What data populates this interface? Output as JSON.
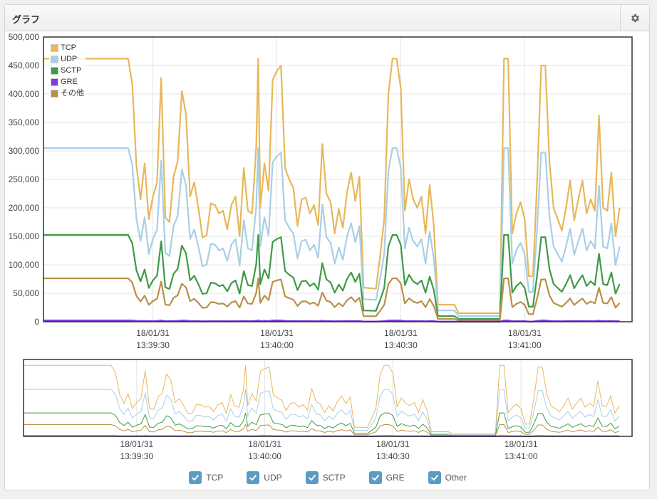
{
  "panel": {
    "title": "グラフ",
    "settings_icon": "gear-icon"
  },
  "colors": {
    "TCP": "#e8b75a",
    "UDP": "#a8cfe6",
    "SCTP": "#3f9a46",
    "GRE": "#7d3bdc",
    "Other": "#b8904a"
  },
  "legend": {
    "items": [
      "TCP",
      "UDP",
      "SCTP",
      "GRE",
      "その他"
    ]
  },
  "toggles": [
    {
      "label": "TCP",
      "checked": true
    },
    {
      "label": "UDP",
      "checked": true
    },
    {
      "label": "SCTP",
      "checked": true
    },
    {
      "label": "GRE",
      "checked": true
    },
    {
      "label": "Other",
      "checked": true
    }
  ],
  "chart_data": [
    {
      "type": "line",
      "title": "",
      "x_tick_labels": [
        {
          "date": "18/01/31",
          "time": "13:39:30",
          "t": 50
        },
        {
          "date": "18/01/31",
          "time": "13:40:00",
          "t": 80
        },
        {
          "date": "18/01/31",
          "time": "13:40:30",
          "t": 110
        },
        {
          "date": "18/01/31",
          "time": "13:41:00",
          "t": 140
        }
      ],
      "x_range": [
        23.5,
        166
      ],
      "y_ticks": [
        "0",
        "50,000",
        "100,000",
        "150,000",
        "200,000",
        "250,000",
        "300,000",
        "350,000",
        "400,000",
        "450,000",
        "500,000"
      ],
      "ylim": [
        0,
        500000
      ],
      "grid": true,
      "legend_position": "top-left",
      "series_ratios": {
        "UDP": 0.66,
        "SCTP": 0.33,
        "Other": 0.165,
        "GRE": 0.005
      },
      "tcp_knots": [
        [
          23.5,
          462000
        ],
        [
          44,
          462000
        ],
        [
          45,
          418000
        ],
        [
          46,
          275000
        ],
        [
          47,
          215000
        ],
        [
          48,
          278000
        ],
        [
          49,
          180000
        ],
        [
          50,
          220000
        ],
        [
          51,
          245000
        ],
        [
          52,
          428000
        ],
        [
          53,
          183000
        ],
        [
          54,
          175000
        ],
        [
          55,
          255000
        ],
        [
          56,
          282000
        ],
        [
          57,
          405000
        ],
        [
          58,
          365000
        ],
        [
          59,
          220000
        ],
        [
          60,
          245000
        ],
        [
          61,
          200000
        ],
        [
          62,
          148000
        ],
        [
          63,
          152000
        ],
        [
          64,
          208000
        ],
        [
          65,
          205000
        ],
        [
          66,
          190000
        ],
        [
          67,
          195000
        ],
        [
          68,
          162000
        ],
        [
          69,
          205000
        ],
        [
          70,
          220000
        ],
        [
          71,
          150000
        ],
        [
          72,
          270000
        ],
        [
          73,
          195000
        ],
        [
          74,
          190000
        ],
        [
          75,
          305000
        ],
        [
          75.5,
          462000
        ],
        [
          76,
          200000
        ],
        [
          77,
          278000
        ],
        [
          78,
          230000
        ],
        [
          79,
          425000
        ],
        [
          80,
          440000
        ],
        [
          81,
          450000
        ],
        [
          82,
          270000
        ],
        [
          83,
          250000
        ],
        [
          84,
          235000
        ],
        [
          85,
          168000
        ],
        [
          86,
          215000
        ],
        [
          87,
          218000
        ],
        [
          88,
          190000
        ],
        [
          89,
          205000
        ],
        [
          90,
          170000
        ],
        [
          91,
          312000
        ],
        [
          92,
          225000
        ],
        [
          93,
          210000
        ],
        [
          94,
          155000
        ],
        [
          95,
          198000
        ],
        [
          96,
          165000
        ],
        [
          97,
          228000
        ],
        [
          98,
          262000
        ],
        [
          99,
          212000
        ],
        [
          100,
          255000
        ],
        [
          101,
          60000
        ],
        [
          104,
          58000
        ],
        [
          105,
          115000
        ],
        [
          106,
          180000
        ],
        [
          107,
          400000
        ],
        [
          108,
          462000
        ],
        [
          109,
          462000
        ],
        [
          110,
          410000
        ],
        [
          111,
          195000
        ],
        [
          112,
          250000
        ],
        [
          113,
          215000
        ],
        [
          114,
          200000
        ],
        [
          115,
          220000
        ],
        [
          116,
          155000
        ],
        [
          117,
          240000
        ],
        [
          118,
          168000
        ],
        [
          119,
          30000
        ],
        [
          123,
          30000
        ],
        [
          124,
          15000
        ],
        [
          134,
          15000
        ],
        [
          135,
          462000
        ],
        [
          136,
          462000
        ],
        [
          137,
          155000
        ],
        [
          138,
          190000
        ],
        [
          139,
          210000
        ],
        [
          140,
          180000
        ],
        [
          141,
          80000
        ],
        [
          142,
          80000
        ],
        [
          143,
          245000
        ],
        [
          144,
          450000
        ],
        [
          145,
          450000
        ],
        [
          146,
          280000
        ],
        [
          147,
          200000
        ],
        [
          148,
          180000
        ],
        [
          149,
          160000
        ],
        [
          150,
          200000
        ],
        [
          151,
          248000
        ],
        [
          152,
          178000
        ],
        [
          153,
          215000
        ],
        [
          154,
          248000
        ],
        [
          155,
          190000
        ],
        [
          156,
          215000
        ],
        [
          157,
          195000
        ],
        [
          158,
          362000
        ],
        [
          159,
          200000
        ],
        [
          160,
          195000
        ],
        [
          161,
          262000
        ],
        [
          162,
          150000
        ],
        [
          163,
          200000
        ]
      ]
    },
    {
      "type": "line",
      "title": "",
      "x_tick_labels": [
        {
          "date": "18/01/31",
          "time": "13:39:30",
          "t": 50
        },
        {
          "date": "18/01/31",
          "time": "13:40:00",
          "t": 80
        },
        {
          "date": "18/01/31",
          "time": "13:40:30",
          "t": 110
        },
        {
          "date": "18/01/31",
          "time": "13:41:00",
          "t": 140
        }
      ],
      "x_range": [
        23.5,
        166
      ],
      "ylim": [
        0,
        500000
      ],
      "grid": true
    }
  ]
}
